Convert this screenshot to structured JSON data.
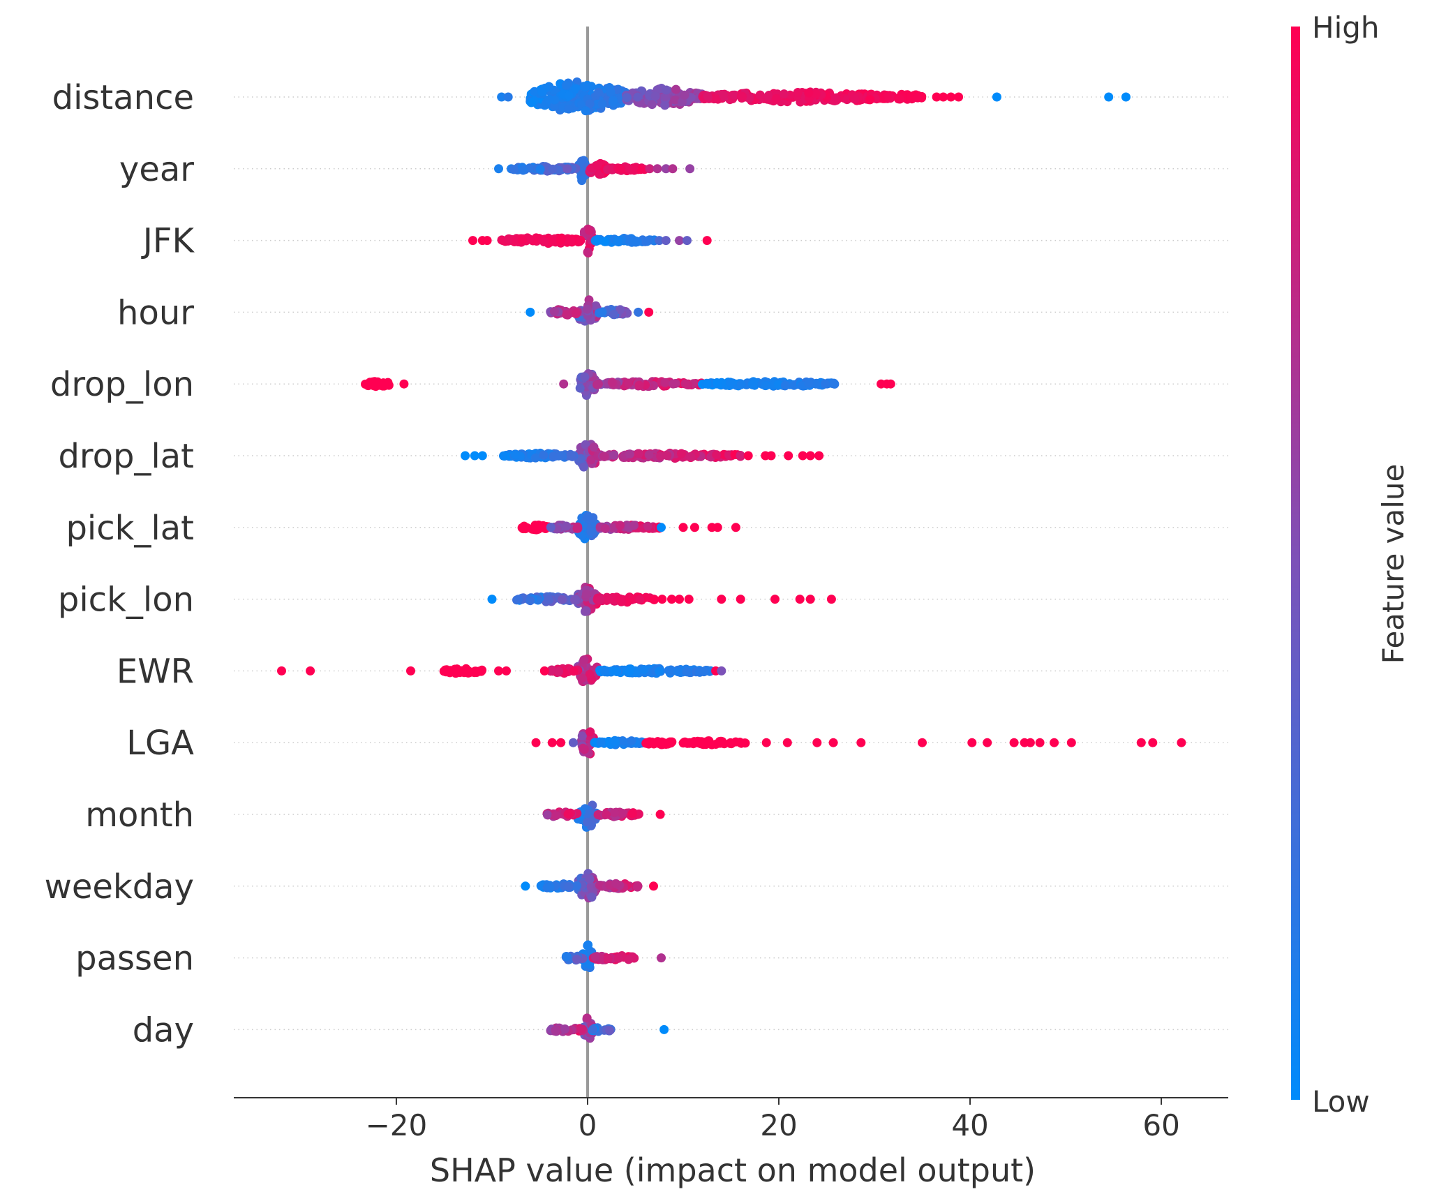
{
  "chart_data": {
    "type": "scatter",
    "subtype": "shap-beeswarm",
    "xlabel": "SHAP value (impact on model output)",
    "xlim": [
      -37,
      67
    ],
    "xticks": [
      {
        "value": -20,
        "label": "−20"
      },
      {
        "value": 0,
        "label": "0"
      },
      {
        "value": 20,
        "label": "20"
      },
      {
        "value": 40,
        "label": "40"
      },
      {
        "value": 60,
        "label": "60"
      }
    ],
    "zero_line": true,
    "grid": "dotted horizontal row lines",
    "colorbar": {
      "title": "Feature value",
      "high_label": "High",
      "low_label": "Low",
      "high_color": "#ff0052",
      "low_color": "#008bfb",
      "placement": "right"
    },
    "features": [
      {
        "name": "distance",
        "clusters": [
          {
            "x": [
              -6,
              4
            ],
            "h": 0.48,
            "c": [
              0.0,
              0.25
            ]
          },
          {
            "x": [
              4,
              12
            ],
            "h": 0.28,
            "c": [
              0.35,
              0.75
            ]
          },
          {
            "x": [
              12,
              32
            ],
            "h": 0.16,
            "c": [
              0.85,
              1.0
            ]
          },
          {
            "x": [
              32,
              35
            ],
            "h": 0.1,
            "c": [
              0.95,
              1.0
            ]
          }
        ],
        "outliers": [
          {
            "x": -9,
            "c": 0.1
          },
          {
            "x": -8.3,
            "c": 0.15
          },
          {
            "x": 36.5,
            "c": 1
          },
          {
            "x": 37.2,
            "c": 1
          },
          {
            "x": 38,
            "c": 1
          },
          {
            "x": 38.8,
            "c": 1
          },
          {
            "x": 42.8,
            "c": 0
          },
          {
            "x": 54.5,
            "c": 0
          },
          {
            "x": 56.3,
            "c": 0
          }
        ]
      },
      {
        "name": "year",
        "clusters": [
          {
            "x": [
              -1,
              0
            ],
            "h": 0.42,
            "c": [
              0.1,
              0.3
            ]
          },
          {
            "x": [
              0,
              2
            ],
            "h": 0.26,
            "c": [
              0.8,
              1.0
            ]
          },
          {
            "x": [
              -8,
              -1
            ],
            "h": 0.08,
            "c": [
              0.0,
              0.5
            ]
          },
          {
            "x": [
              2,
              6
            ],
            "h": 0.07,
            "c": [
              0.85,
              1.0
            ]
          }
        ],
        "outliers": [
          {
            "x": -9.3,
            "c": 0.1
          },
          {
            "x": 6.5,
            "c": 0.8
          },
          {
            "x": 7.3,
            "c": 0.7
          },
          {
            "x": 8.2,
            "c": 0.6
          },
          {
            "x": 8.9,
            "c": 0.7
          },
          {
            "x": 10.7,
            "c": 0.6
          }
        ]
      },
      {
        "name": "JFK",
        "clusters": [
          {
            "x": [
              -0.5,
              0.6
            ],
            "h": 0.44,
            "c": [
              0.6,
              1.0
            ]
          },
          {
            "x": [
              -9,
              -0.5
            ],
            "h": 0.1,
            "c": [
              0.9,
              1.0
            ]
          },
          {
            "x": [
              0.6,
              7
            ],
            "h": 0.07,
            "c": [
              0.0,
              0.2
            ]
          }
        ],
        "outliers": [
          {
            "x": -12,
            "c": 1
          },
          {
            "x": -11,
            "c": 1
          },
          {
            "x": -10.5,
            "c": 1
          },
          {
            "x": 7.5,
            "c": 0.3
          },
          {
            "x": 8.2,
            "c": 0.4
          },
          {
            "x": 9.6,
            "c": 0.6
          },
          {
            "x": 10.4,
            "c": 0.4
          },
          {
            "x": 12.5,
            "c": 1
          }
        ]
      },
      {
        "name": "hour",
        "clusters": [
          {
            "x": [
              -1,
              1
            ],
            "h": 0.42,
            "c": [
              0.2,
              0.9
            ]
          },
          {
            "x": [
              -4,
              -1
            ],
            "h": 0.1,
            "c": [
              0.5,
              1.0
            ]
          },
          {
            "x": [
              1,
              4.5
            ],
            "h": 0.09,
            "c": [
              0.0,
              0.6
            ]
          }
        ],
        "outliers": [
          {
            "x": -6,
            "c": 0
          },
          {
            "x": 5.3,
            "c": 0.2
          },
          {
            "x": 6.4,
            "c": 1
          }
        ]
      },
      {
        "name": "drop_lon",
        "clusters": [
          {
            "x": [
              -0.8,
              0.8
            ],
            "h": 0.42,
            "c": [
              0.3,
              0.7
            ]
          },
          {
            "x": [
              0.8,
              12
            ],
            "h": 0.08,
            "c": [
              0.5,
              1.0
            ]
          },
          {
            "x": [
              12,
              26
            ],
            "h": 0.08,
            "c": [
              0.0,
              0.2
            ]
          },
          {
            "x": [
              -23.5,
              -20.5
            ],
            "h": 0.08,
            "c": [
              1.0,
              1.0
            ]
          }
        ],
        "outliers": [
          {
            "x": -19.2,
            "c": 1
          },
          {
            "x": -2.5,
            "c": 0.7
          },
          {
            "x": 30.7,
            "c": 1
          },
          {
            "x": 31.3,
            "c": 1
          },
          {
            "x": 31.7,
            "c": 1
          }
        ]
      },
      {
        "name": "drop_lat",
        "clusters": [
          {
            "x": [
              -1,
              1
            ],
            "h": 0.42,
            "c": [
              0.2,
              0.9
            ]
          },
          {
            "x": [
              -9,
              -1
            ],
            "h": 0.08,
            "c": [
              0.0,
              0.3
            ]
          },
          {
            "x": [
              1,
              16
            ],
            "h": 0.08,
            "c": [
              0.6,
              1.0
            ]
          }
        ],
        "outliers": [
          {
            "x": -12.8,
            "c": 0
          },
          {
            "x": -11.8,
            "c": 0
          },
          {
            "x": -11,
            "c": 0
          },
          {
            "x": 16.8,
            "c": 1
          },
          {
            "x": 18.6,
            "c": 1
          },
          {
            "x": 19.2,
            "c": 1
          },
          {
            "x": 21,
            "c": 1
          },
          {
            "x": 22.5,
            "c": 1
          },
          {
            "x": 23.3,
            "c": 1
          },
          {
            "x": 24.2,
            "c": 1
          }
        ]
      },
      {
        "name": "pick_lat",
        "clusters": [
          {
            "x": [
              -1,
              1
            ],
            "h": 0.42,
            "c": [
              0.0,
              0.3
            ]
          },
          {
            "x": [
              -7,
              -4
            ],
            "h": 0.08,
            "c": [
              1.0,
              1.0
            ]
          },
          {
            "x": [
              -4,
              -1
            ],
            "h": 0.08,
            "c": [
              0.3,
              0.9
            ]
          },
          {
            "x": [
              1,
              7.5
            ],
            "h": 0.08,
            "c": [
              0.5,
              1.0
            ]
          }
        ],
        "outliers": [
          {
            "x": 7.7,
            "c": 0
          },
          {
            "x": 10,
            "c": 1
          },
          {
            "x": 11.2,
            "c": 1
          },
          {
            "x": 13,
            "c": 1
          },
          {
            "x": 13.6,
            "c": 1
          },
          {
            "x": 15.5,
            "c": 1
          }
        ]
      },
      {
        "name": "pick_lon",
        "clusters": [
          {
            "x": [
              -1,
              1
            ],
            "h": 0.42,
            "c": [
              0.3,
              1.0
            ]
          },
          {
            "x": [
              -7.5,
              -1
            ],
            "h": 0.08,
            "c": [
              0.0,
              0.6
            ]
          },
          {
            "x": [
              1,
              7
            ],
            "h": 0.1,
            "c": [
              0.85,
              1.0
            ]
          }
        ],
        "outliers": [
          {
            "x": -10,
            "c": 0
          },
          {
            "x": 7.8,
            "c": 1
          },
          {
            "x": 8.8,
            "c": 1
          },
          {
            "x": 9.6,
            "c": 1
          },
          {
            "x": 10.6,
            "c": 1
          },
          {
            "x": 14,
            "c": 1
          },
          {
            "x": 16,
            "c": 1
          },
          {
            "x": 19.6,
            "c": 1
          },
          {
            "x": 22.2,
            "c": 1
          },
          {
            "x": 23.3,
            "c": 1
          },
          {
            "x": 25.5,
            "c": 1
          }
        ]
      },
      {
        "name": "EWR",
        "clusters": [
          {
            "x": [
              -1,
              1
            ],
            "h": 0.42,
            "c": [
              0.5,
              1.0
            ]
          },
          {
            "x": [
              1,
              13
            ],
            "h": 0.08,
            "c": [
              0.0,
              0.2
            ]
          },
          {
            "x": [
              -15.5,
              -11
            ],
            "h": 0.08,
            "c": [
              1.0,
              1.0
            ]
          },
          {
            "x": [
              -4,
              -1
            ],
            "h": 0.08,
            "c": [
              0.8,
              1.0
            ]
          }
        ],
        "outliers": [
          {
            "x": -32,
            "c": 1
          },
          {
            "x": -29,
            "c": 1
          },
          {
            "x": -18.5,
            "c": 1
          },
          {
            "x": -9.3,
            "c": 1
          },
          {
            "x": -8.5,
            "c": 1
          },
          {
            "x": -4.5,
            "c": 1
          },
          {
            "x": 13.4,
            "c": 1
          },
          {
            "x": 14,
            "c": 0.5
          }
        ]
      },
      {
        "name": "LGA",
        "clusters": [
          {
            "x": [
              -0.7,
              0.7
            ],
            "h": 0.42,
            "c": [
              0.5,
              1.0
            ]
          },
          {
            "x": [
              0.7,
              6
            ],
            "h": 0.07,
            "c": [
              0.0,
              0.2
            ]
          },
          {
            "x": [
              6,
              9
            ],
            "h": 0.07,
            "c": [
              1.0,
              1.0
            ]
          },
          {
            "x": [
              10,
              16.5
            ],
            "h": 0.07,
            "c": [
              1.0,
              1.0
            ]
          }
        ],
        "outliers": [
          {
            "x": -5.4,
            "c": 1
          },
          {
            "x": -3.7,
            "c": 1
          },
          {
            "x": -2.8,
            "c": 1
          },
          {
            "x": -1.5,
            "c": 0.4
          },
          {
            "x": 18.7,
            "c": 1
          },
          {
            "x": 20.9,
            "c": 1
          },
          {
            "x": 24,
            "c": 1
          },
          {
            "x": 25.7,
            "c": 1
          },
          {
            "x": 28.6,
            "c": 1
          },
          {
            "x": 35,
            "c": 1
          },
          {
            "x": 40.2,
            "c": 1
          },
          {
            "x": 41.8,
            "c": 1
          },
          {
            "x": 44.6,
            "c": 1
          },
          {
            "x": 45.7,
            "c": 1
          },
          {
            "x": 46.3,
            "c": 1
          },
          {
            "x": 47.3,
            "c": 1
          },
          {
            "x": 48.8,
            "c": 1
          },
          {
            "x": 50.6,
            "c": 1
          },
          {
            "x": 57.9,
            "c": 1
          },
          {
            "x": 59.1,
            "c": 1
          },
          {
            "x": 62.1,
            "c": 1
          }
        ]
      },
      {
        "name": "month",
        "clusters": [
          {
            "x": [
              -1,
              1
            ],
            "h": 0.42,
            "c": [
              0.0,
              0.4
            ]
          },
          {
            "x": [
              -4.5,
              -1
            ],
            "h": 0.08,
            "c": [
              0.6,
              1.0
            ]
          },
          {
            "x": [
              1,
              5.5
            ],
            "h": 0.08,
            "c": [
              0.6,
              1.0
            ]
          }
        ],
        "outliers": [
          {
            "x": 7.6,
            "c": 1
          }
        ]
      },
      {
        "name": "weekday",
        "clusters": [
          {
            "x": [
              -1,
              1
            ],
            "h": 0.42,
            "c": [
              0.2,
              0.8
            ]
          },
          {
            "x": [
              -5,
              -1
            ],
            "h": 0.08,
            "c": [
              0.0,
              0.3
            ]
          },
          {
            "x": [
              1,
              5.5
            ],
            "h": 0.08,
            "c": [
              0.5,
              1.0
            ]
          }
        ],
        "outliers": [
          {
            "x": -6.5,
            "c": 0
          },
          {
            "x": 6.9,
            "c": 1
          }
        ]
      },
      {
        "name": "passen",
        "clusters": [
          {
            "x": [
              -0.5,
              0.5
            ],
            "h": 0.42,
            "c": [
              0.0,
              0.2
            ]
          },
          {
            "x": [
              -2.5,
              -0.5
            ],
            "h": 0.08,
            "c": [
              0.0,
              0.6
            ]
          },
          {
            "x": [
              0.5,
              5
            ],
            "h": 0.08,
            "c": [
              0.7,
              1.0
            ]
          }
        ],
        "outliers": [
          {
            "x": 7.7,
            "c": 0.7
          }
        ]
      },
      {
        "name": "day",
        "clusters": [
          {
            "x": [
              -0.5,
              0.5
            ],
            "h": 0.42,
            "c": [
              0.3,
              0.9
            ]
          },
          {
            "x": [
              -4,
              -0.5
            ],
            "h": 0.08,
            "c": [
              0.5,
              1.0
            ]
          },
          {
            "x": [
              0.5,
              2.5
            ],
            "h": 0.08,
            "c": [
              0.0,
              0.5
            ]
          }
        ],
        "outliers": [
          {
            "x": 8,
            "c": 0
          }
        ]
      }
    ]
  }
}
